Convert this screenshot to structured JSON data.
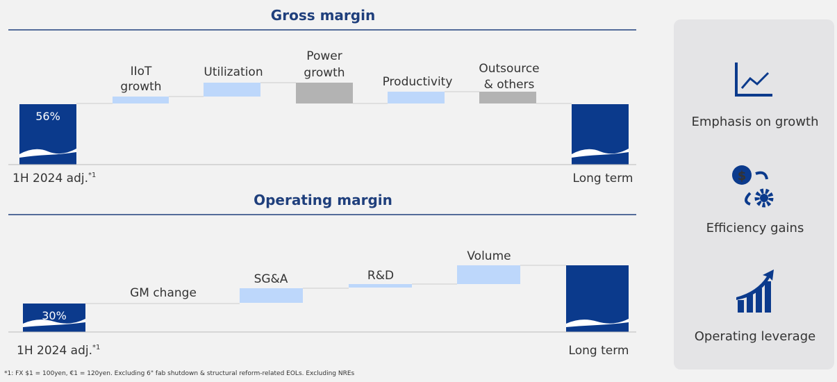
{
  "gross_margin": {
    "title": "Gross margin",
    "start_value": "56%",
    "steps": [
      [
        "IIoT",
        "growth"
      ],
      [
        "Utilization"
      ],
      [
        "Power",
        "growth"
      ],
      [
        "Productivity"
      ],
      [
        "Outsource",
        "& others"
      ]
    ],
    "start_label": "1H 2024 adj.",
    "start_ref": "*1",
    "end_label": "Long term"
  },
  "operating_margin": {
    "title": "Operating margin",
    "start_value": "30%",
    "steps": [
      "GM change",
      "SG&A",
      "R&D",
      "Volume"
    ],
    "start_label": "1H 2024 adj.",
    "start_ref": "*1",
    "end_label": "Long term"
  },
  "panel": [
    "Emphasis on growth",
    "Efficiency gains",
    "Operating leverage"
  ],
  "footnote": "*1: FX $1 = 100yen, €1 = 120yen. Excluding 6\" fab shutdown & structural reform-related EOLs. Excluding NREs"
}
